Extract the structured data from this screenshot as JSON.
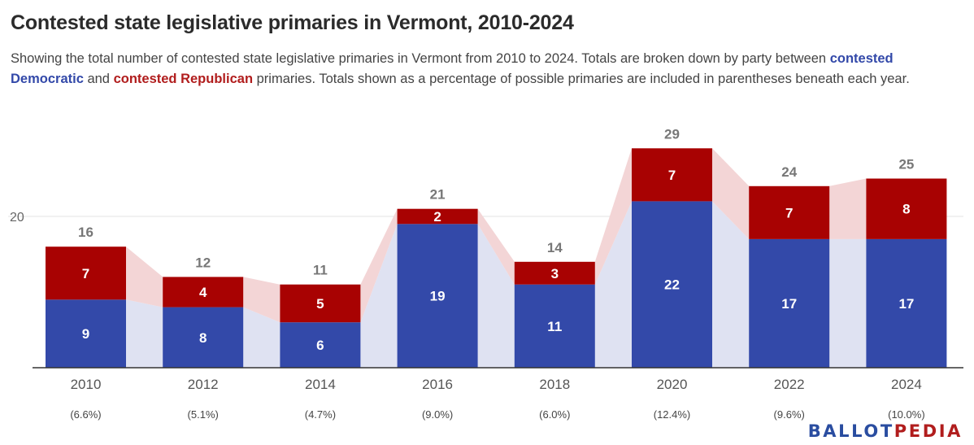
{
  "title": "Contested state legislative primaries in Vermont, 2010-2024",
  "subtitle": {
    "part1": "Showing the total number of contested state legislative primaries in Vermont from 2010 to 2024. Totals are broken down by party between ",
    "dem_label": "contested Democratic",
    "part2": " and ",
    "rep_label": "contested Republican",
    "part3": " primaries. Totals shown as a percentage of possible primaries are included in parentheses beneath each year."
  },
  "brand": {
    "prefix": "BALLOT",
    "accent": "PEDIA",
    "suffix": ""
  },
  "colors": {
    "democratic": "#3349a9",
    "republican": "#a80202",
    "democratic_area": "#dfe2f2",
    "republican_area": "#f3d5d6",
    "brand": "#2a4da0"
  },
  "chart_data": {
    "type": "bar",
    "stacked": true,
    "categories": [
      "2010",
      "2012",
      "2014",
      "2016",
      "2018",
      "2020",
      "2022",
      "2024"
    ],
    "category_sublabels": [
      "(6.6%)",
      "(5.1%)",
      "(4.7%)",
      "(9.0%)",
      "(6.0%)",
      "(12.4%)",
      "(9.6%)",
      "(10.0%)"
    ],
    "series": [
      {
        "name": "contested Democratic",
        "values": [
          9,
          8,
          6,
          19,
          11,
          22,
          17,
          17
        ]
      },
      {
        "name": "contested Republican",
        "values": [
          7,
          4,
          5,
          2,
          3,
          7,
          7,
          8
        ]
      }
    ],
    "totals": [
      16,
      12,
      11,
      21,
      14,
      29,
      24,
      25
    ],
    "yticks": [
      20
    ],
    "ylim": [
      0,
      30
    ],
    "grid": true,
    "legend": "inline in subtitle"
  }
}
